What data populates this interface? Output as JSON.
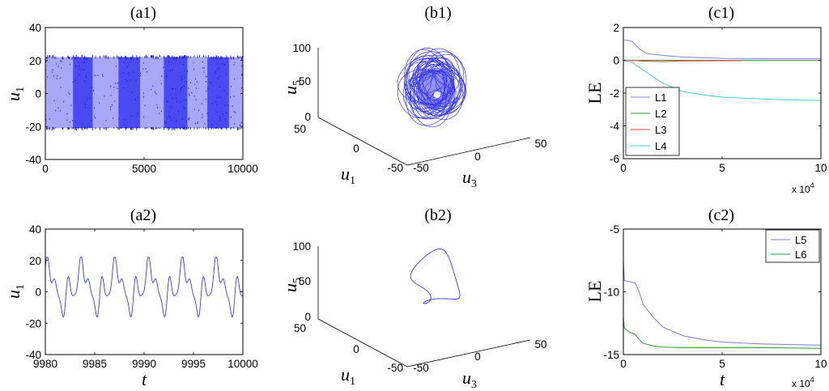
{
  "colors": {
    "signal": "#3a3af0",
    "band_light": "#a8a8f8",
    "band_dark": "#4a4af2",
    "L1": "#8080ff",
    "L2": "#2e9a2e",
    "L3": "#ff4040",
    "L4": "#40d0d0",
    "L5": "#7a7af0",
    "L6": "#2e9a2e"
  },
  "chart_data": [
    {
      "id": "a1",
      "type": "line",
      "title": "(a1)",
      "xlabel": "",
      "ylabel_main": "u",
      "ylabel_sub": "1",
      "xlim": [
        0,
        10000
      ],
      "ylim": [
        -40,
        40
      ],
      "xticks": [
        0,
        5000,
        10000
      ],
      "yticks": [
        -40,
        -20,
        0,
        20,
        40
      ],
      "envelope": [
        -21,
        22
      ],
      "bands": [
        {
          "from": 0,
          "to": 1400,
          "shade": "light"
        },
        {
          "from": 1400,
          "to": 2400,
          "shade": "dark"
        },
        {
          "from": 2400,
          "to": 3700,
          "shade": "light"
        },
        {
          "from": 3700,
          "to": 4800,
          "shade": "dark"
        },
        {
          "from": 4800,
          "to": 6000,
          "shade": "light"
        },
        {
          "from": 6000,
          "to": 7200,
          "shade": "dark"
        },
        {
          "from": 7200,
          "to": 8200,
          "shade": "light"
        },
        {
          "from": 8200,
          "to": 9300,
          "shade": "dark"
        },
        {
          "from": 9300,
          "to": 10000,
          "shade": "light"
        }
      ]
    },
    {
      "id": "a2",
      "type": "line",
      "title": "(a2)",
      "xlabel": "t",
      "ylabel_main": "u",
      "ylabel_sub": "1",
      "xlim": [
        9980,
        10000
      ],
      "ylim": [
        -40,
        40
      ],
      "xticks": [
        9980,
        9985,
        9990,
        9995,
        10000
      ],
      "yticks": [
        -40,
        -20,
        0,
        20,
        40
      ],
      "period": 3.42,
      "amplitude": [
        -21,
        22
      ]
    },
    {
      "id": "b1",
      "type": "line",
      "title": "(b1)",
      "axis_x_main": "u",
      "axis_x_sub": "1",
      "axis_y_main": "u",
      "axis_y_sub": "3",
      "axis_z_main": "u",
      "axis_z_sub": "5",
      "x_ticks": [
        "50",
        "0",
        "-50"
      ],
      "y_ticks": [
        "-50",
        "0",
        "50"
      ],
      "z_ticks": [
        "0",
        "50",
        "100"
      ],
      "attractor": "chaotic"
    },
    {
      "id": "b2",
      "type": "line",
      "title": "(b2)",
      "axis_x_main": "u",
      "axis_x_sub": "1",
      "axis_y_main": "u",
      "axis_y_sub": "3",
      "axis_z_main": "u",
      "axis_z_sub": "5",
      "x_ticks": [
        "50",
        "0",
        "-50"
      ],
      "y_ticks": [
        "-50",
        "0",
        "50"
      ],
      "z_ticks": [
        "0",
        "50",
        "100"
      ],
      "attractor": "periodic"
    },
    {
      "id": "c1",
      "type": "line",
      "title": "(c1)",
      "xlabel": "",
      "ylabel": "LE",
      "xlim": [
        0,
        10
      ],
      "ylim": [
        -6,
        2
      ],
      "xticks": [
        0,
        5,
        10
      ],
      "yticks": [
        -6,
        -4,
        -2,
        0,
        2
      ],
      "x_multiplier": "x 10",
      "x_multiplier_exp": "4",
      "legend": "lower-left",
      "series": [
        {
          "name": "L1",
          "x": [
            0,
            0.3,
            0.5,
            0.8,
            1.2,
            2,
            3,
            5,
            7,
            10
          ],
          "values": [
            1.25,
            1.2,
            1.1,
            0.7,
            0.4,
            0.3,
            0.2,
            0.12,
            0.1,
            0.1
          ]
        },
        {
          "name": "L2",
          "x": [
            0,
            1,
            2,
            4,
            6,
            8,
            10
          ],
          "values": [
            0,
            0,
            0,
            0,
            0,
            0,
            0
          ]
        },
        {
          "name": "L3",
          "x": [
            0,
            0.5,
            1,
            2,
            3,
            6
          ],
          "values": [
            0,
            0,
            -0.05,
            -0.08,
            -0.04,
            -0.02
          ]
        },
        {
          "name": "L4",
          "x": [
            0,
            0.4,
            1,
            1.5,
            2,
            3,
            4,
            5,
            6,
            8,
            10
          ],
          "values": [
            -0.05,
            -0.1,
            -0.6,
            -1.0,
            -1.4,
            -1.9,
            -2.1,
            -2.25,
            -2.3,
            -2.4,
            -2.45
          ]
        }
      ]
    },
    {
      "id": "c2",
      "type": "line",
      "title": "(c2)",
      "xlabel": "t",
      "ylabel": "LE",
      "xlim": [
        0,
        10
      ],
      "ylim": [
        -15,
        -5
      ],
      "xticks": [
        0,
        5,
        10
      ],
      "yticks": [
        -15,
        -10,
        -5
      ],
      "x_multiplier": "x 10",
      "x_multiplier_exp": "4",
      "legend": "top-right",
      "series": [
        {
          "name": "L5",
          "x": [
            0,
            0.05,
            0.2,
            0.6,
            0.8,
            1,
            1.5,
            2,
            3,
            4,
            5,
            7,
            10
          ],
          "values": [
            -7.5,
            -9.1,
            -9.15,
            -9.3,
            -10.0,
            -11.0,
            -12.0,
            -12.8,
            -13.5,
            -13.8,
            -14.0,
            -14.15,
            -14.25
          ]
        },
        {
          "name": "L6",
          "x": [
            0,
            0.05,
            0.3,
            0.6,
            0.8,
            1,
            1.5,
            2,
            3,
            5,
            7,
            10
          ],
          "values": [
            -12.0,
            -12.9,
            -13.2,
            -13.4,
            -13.8,
            -14.1,
            -14.3,
            -14.4,
            -14.45,
            -14.45,
            -14.45,
            -14.5
          ]
        }
      ]
    }
  ]
}
